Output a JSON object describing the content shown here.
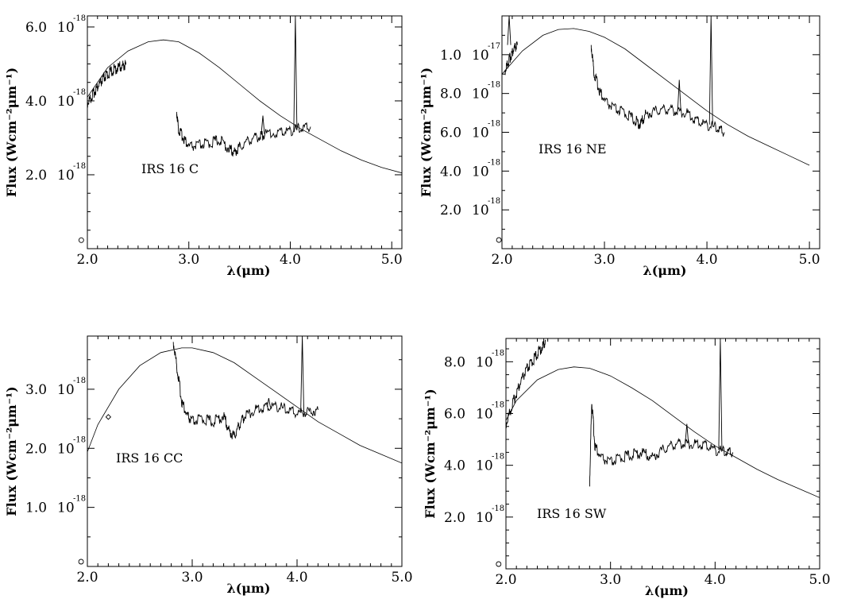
{
  "chart_data": [
    {
      "type": "line",
      "label": "IRS 16 C",
      "xlabel": "λ(μm)",
      "ylabel": "Flux (Wcm⁻²μm⁻¹)",
      "xlim": [
        2.0,
        5.1
      ],
      "ylim": [
        0.0,
        6.3
      ],
      "xticks": [
        "2.0",
        "3.0",
        "4.0",
        "5.0"
      ],
      "yticks": [
        {
          "value": 0.0,
          "mantissa": "",
          "exponent": ""
        },
        {
          "value": 2.0,
          "mantissa": "2.0",
          "exponent": "-18"
        },
        {
          "value": 4.0,
          "mantissa": "4.0",
          "exponent": "-18"
        },
        {
          "value": 6.0,
          "mantissa": "6.0",
          "exponent": "-18"
        }
      ],
      "series": [
        {
          "role": "spectrum",
          "segments": [
            [
              [
                2.0,
                3.95
              ],
              [
                2.04,
                4.1
              ],
              [
                2.08,
                4.3
              ],
              [
                2.12,
                4.45
              ],
              [
                2.16,
                4.6
              ],
              [
                2.2,
                4.72
              ],
              [
                2.25,
                4.82
              ],
              [
                2.3,
                4.9
              ],
              [
                2.35,
                4.95
              ],
              [
                2.38,
                4.98
              ]
            ],
            [
              [
                2.88,
                3.7
              ],
              [
                2.9,
                3.2
              ],
              [
                2.95,
                3.0
              ],
              [
                3.0,
                2.75
              ],
              [
                3.1,
                2.8
              ],
              [
                3.2,
                2.85
              ],
              [
                3.3,
                2.95
              ],
              [
                3.4,
                2.7
              ],
              [
                3.45,
                2.6
              ],
              [
                3.5,
                2.75
              ],
              [
                3.6,
                2.95
              ],
              [
                3.7,
                3.05
              ],
              [
                3.75,
                3.1
              ],
              [
                3.9,
                3.15
              ],
              [
                4.0,
                3.2
              ],
              [
                4.1,
                3.25
              ],
              [
                4.2,
                3.3
              ]
            ]
          ],
          "lines": [
            [
              3.73,
              3.6
            ],
            [
              4.05,
              6.3
            ]
          ]
        },
        {
          "role": "model",
          "points": [
            [
              2.0,
              4.1
            ],
            [
              2.2,
              4.9
            ],
            [
              2.4,
              5.35
            ],
            [
              2.6,
              5.6
            ],
            [
              2.75,
              5.65
            ],
            [
              2.9,
              5.6
            ],
            [
              3.1,
              5.3
            ],
            [
              3.3,
              4.9
            ],
            [
              3.5,
              4.45
            ],
            [
              3.7,
              4.0
            ],
            [
              3.9,
              3.6
            ],
            [
              4.1,
              3.25
            ],
            [
              4.3,
              2.95
            ],
            [
              4.5,
              2.65
            ],
            [
              4.7,
              2.4
            ],
            [
              4.9,
              2.2
            ],
            [
              5.1,
              2.05
            ]
          ]
        }
      ],
      "markers": [
        {
          "shape": "circle",
          "x": 1.94,
          "y": 0.1
        }
      ]
    },
    {
      "type": "line",
      "label": "IRS 16 NE",
      "xlabel": "λ(μm)",
      "ylabel": "Flux (Wcm⁻²μm⁻¹)",
      "xlim": [
        2.0,
        5.1
      ],
      "ylim": [
        0.0,
        12.0
      ],
      "xticks": [
        "2.0",
        "3.0",
        "4.0",
        "5.0"
      ],
      "yticks": [
        {
          "value": 0.0,
          "mantissa": "",
          "exponent": ""
        },
        {
          "value": 2.0,
          "mantissa": "2.0",
          "exponent": "-18"
        },
        {
          "value": 4.0,
          "mantissa": "4.0",
          "exponent": "-18"
        },
        {
          "value": 6.0,
          "mantissa": "6.0",
          "exponent": "-18"
        },
        {
          "value": 8.0,
          "mantissa": "8.0",
          "exponent": "-18"
        },
        {
          "value": 10.0,
          "mantissa": "1.0",
          "exponent": "-17"
        }
      ],
      "series": [
        {
          "role": "spectrum",
          "segments": [
            [
              [
                2.03,
                9.2
              ],
              [
                2.06,
                9.6
              ],
              [
                2.09,
                10.0
              ],
              [
                2.12,
                10.3
              ],
              [
                2.15,
                10.5
              ]
            ],
            [
              [
                2.87,
                10.5
              ],
              [
                2.9,
                9.0
              ],
              [
                2.95,
                8.2
              ],
              [
                3.0,
                7.6
              ],
              [
                3.1,
                7.2
              ],
              [
                3.2,
                7.0
              ],
              [
                3.3,
                6.6
              ],
              [
                3.35,
                6.4
              ],
              [
                3.4,
                6.9
              ],
              [
                3.5,
                7.1
              ],
              [
                3.6,
                7.2
              ],
              [
                3.7,
                7.1
              ],
              [
                3.8,
                7.0
              ],
              [
                3.9,
                6.6
              ],
              [
                4.0,
                6.4
              ],
              [
                4.1,
                6.2
              ],
              [
                4.17,
                6.0
              ]
            ]
          ],
          "lines": [
            [
              3.73,
              8.7
            ],
            [
              2.07,
              12.0
            ],
            [
              4.04,
              12.0
            ]
          ]
        },
        {
          "role": "model",
          "points": [
            [
              2.0,
              9.0
            ],
            [
              2.2,
              10.2
            ],
            [
              2.4,
              11.0
            ],
            [
              2.55,
              11.3
            ],
            [
              2.7,
              11.35
            ],
            [
              2.85,
              11.2
            ],
            [
              3.0,
              10.9
            ],
            [
              3.2,
              10.3
            ],
            [
              3.4,
              9.5
            ],
            [
              3.6,
              8.7
            ],
            [
              3.8,
              7.9
            ],
            [
              4.0,
              7.1
            ],
            [
              4.2,
              6.4
            ],
            [
              4.4,
              5.8
            ],
            [
              4.6,
              5.3
            ],
            [
              4.8,
              4.8
            ],
            [
              5.0,
              4.3
            ]
          ]
        }
      ],
      "markers": [
        {
          "shape": "circle",
          "x": 1.97,
          "y": 0.2
        }
      ]
    },
    {
      "type": "line",
      "label": "IRS 16 CC",
      "xlabel": "λ(μm)",
      "ylabel": "Flux (Wcm⁻²μm⁻¹)",
      "xlim": [
        2.0,
        5.0
      ],
      "ylim": [
        0.0,
        3.9
      ],
      "xticks": [
        "2.0",
        "3.0",
        "4.0",
        "5.0"
      ],
      "yticks": [
        {
          "value": 0.0,
          "mantissa": "",
          "exponent": ""
        },
        {
          "value": 1.0,
          "mantissa": "1.0",
          "exponent": "-18"
        },
        {
          "value": 2.0,
          "mantissa": "2.0",
          "exponent": "-18"
        },
        {
          "value": 3.0,
          "mantissa": "3.0",
          "exponent": "-18"
        }
      ],
      "series": [
        {
          "role": "spectrum",
          "segments": [
            [
              [
                2.82,
                3.8
              ],
              [
                2.86,
                3.3
              ],
              [
                2.9,
                2.8
              ],
              [
                2.95,
                2.55
              ],
              [
                3.0,
                2.45
              ],
              [
                3.1,
                2.5
              ],
              [
                3.2,
                2.45
              ],
              [
                3.3,
                2.55
              ],
              [
                3.35,
                2.3
              ],
              [
                3.4,
                2.2
              ],
              [
                3.45,
                2.4
              ],
              [
                3.5,
                2.55
              ],
              [
                3.6,
                2.65
              ],
              [
                3.7,
                2.7
              ],
              [
                3.8,
                2.72
              ],
              [
                3.9,
                2.65
              ],
              [
                4.0,
                2.6
              ],
              [
                4.1,
                2.62
              ],
              [
                4.2,
                2.65
              ]
            ]
          ],
          "lines": [
            [
              4.05,
              3.9
            ],
            [
              3.73,
              2.85
            ]
          ]
        },
        {
          "role": "model",
          "points": [
            [
              1.97,
              1.8
            ],
            [
              2.1,
              2.4
            ],
            [
              2.3,
              3.0
            ],
            [
              2.5,
              3.4
            ],
            [
              2.7,
              3.62
            ],
            [
              2.9,
              3.7
            ],
            [
              3.0,
              3.7
            ],
            [
              3.2,
              3.62
            ],
            [
              3.4,
              3.45
            ],
            [
              3.6,
              3.2
            ],
            [
              3.8,
              2.95
            ],
            [
              4.0,
              2.7
            ],
            [
              4.2,
              2.45
            ],
            [
              4.4,
              2.25
            ],
            [
              4.6,
              2.05
            ],
            [
              4.8,
              1.9
            ],
            [
              5.0,
              1.75
            ]
          ]
        }
      ],
      "markers": [
        {
          "shape": "circle",
          "x": 1.94,
          "y": 0.0
        },
        {
          "shape": "diamond",
          "x": 2.2,
          "y": 2.45
        }
      ]
    },
    {
      "type": "line",
      "label": "IRS 16 SW",
      "xlabel": "λ(μm)",
      "ylabel": "Flux (Wcm⁻²μm⁻¹)",
      "xlim": [
        2.0,
        5.0
      ],
      "ylim": [
        0.0,
        8.9
      ],
      "xticks": [
        "2.0",
        "3.0",
        "4.0",
        "5.0"
      ],
      "yticks": [
        {
          "value": 0.0,
          "mantissa": "",
          "exponent": ""
        },
        {
          "value": 2.0,
          "mantissa": "2.0",
          "exponent": "-18"
        },
        {
          "value": 4.0,
          "mantissa": "4.0",
          "exponent": "-18"
        },
        {
          "value": 6.0,
          "mantissa": "6.0",
          "exponent": "-18"
        },
        {
          "value": 8.0,
          "mantissa": "8.0",
          "exponent": "-18"
        }
      ],
      "series": [
        {
          "role": "spectrum",
          "segments": [
            [
              [
                2.0,
                5.6
              ],
              [
                2.05,
                6.2
              ],
              [
                2.1,
                6.8
              ],
              [
                2.15,
                7.3
              ],
              [
                2.2,
                7.7
              ],
              [
                2.25,
                8.0
              ],
              [
                2.3,
                8.3
              ],
              [
                2.35,
                8.6
              ],
              [
                2.38,
                8.8
              ]
            ],
            [
              [
                2.8,
                3.2
              ],
              [
                2.82,
                6.5
              ],
              [
                2.85,
                4.8
              ],
              [
                2.9,
                4.3
              ],
              [
                3.0,
                4.1
              ],
              [
                3.1,
                4.3
              ],
              [
                3.2,
                4.4
              ],
              [
                3.3,
                4.5
              ],
              [
                3.4,
                4.3
              ],
              [
                3.5,
                4.6
              ],
              [
                3.6,
                4.8
              ],
              [
                3.7,
                4.85
              ],
              [
                3.8,
                4.82
              ],
              [
                3.9,
                4.8
              ],
              [
                4.0,
                4.6
              ],
              [
                4.1,
                4.5
              ],
              [
                4.17,
                4.5
              ]
            ]
          ],
          "lines": [
            [
              3.73,
              5.6
            ],
            [
              4.05,
              8.9
            ]
          ]
        },
        {
          "role": "model",
          "points": [
            [
              1.97,
              5.5
            ],
            [
              2.1,
              6.5
            ],
            [
              2.3,
              7.3
            ],
            [
              2.5,
              7.7
            ],
            [
              2.65,
              7.8
            ],
            [
              2.8,
              7.75
            ],
            [
              3.0,
              7.45
            ],
            [
              3.2,
              7.0
            ],
            [
              3.4,
              6.5
            ],
            [
              3.6,
              5.9
            ],
            [
              3.8,
              5.3
            ],
            [
              4.0,
              4.75
            ],
            [
              4.2,
              4.3
            ],
            [
              4.4,
              3.85
            ],
            [
              4.6,
              3.45
            ],
            [
              4.8,
              3.1
            ],
            [
              5.0,
              2.75
            ]
          ]
        }
      ],
      "markers": [
        {
          "shape": "circle",
          "x": 1.93,
          "y": 0.0
        }
      ]
    }
  ]
}
